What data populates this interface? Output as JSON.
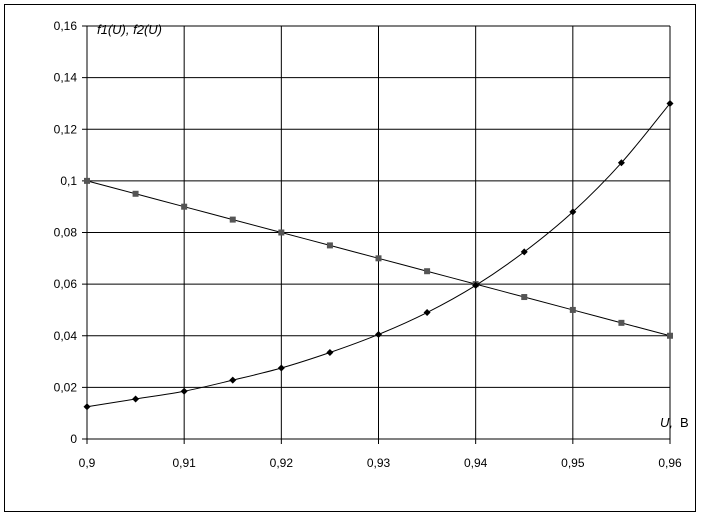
{
  "chart_data": {
    "type": "line",
    "ylabel": "f1(U), f2(U)",
    "xlabel_var": "U",
    "xlabel_unit": "B",
    "xlim": [
      0.9,
      0.96
    ],
    "ylim": [
      0,
      0.16
    ],
    "x_ticks": [
      "0,9",
      "0,91",
      "0,92",
      "0,93",
      "0,94",
      "0,95",
      "0,96"
    ],
    "y_ticks": [
      "0",
      "0,02",
      "0,04",
      "0,06",
      "0,08",
      "0,1",
      "0,12",
      "0,14",
      "0,16"
    ],
    "grid": true,
    "series": [
      {
        "marker": "square",
        "color": "#555555",
        "x": [
          0.9,
          0.905,
          0.91,
          0.915,
          0.92,
          0.925,
          0.93,
          0.935,
          0.94,
          0.945,
          0.95,
          0.955,
          0.96
        ],
        "values": [
          0.1,
          0.095,
          0.09,
          0.085,
          0.08,
          0.075,
          0.07,
          0.065,
          0.06,
          0.055,
          0.05,
          0.045,
          0.04
        ]
      },
      {
        "marker": "diamond",
        "color": "#000000",
        "x": [
          0.9,
          0.905,
          0.91,
          0.915,
          0.92,
          0.925,
          0.93,
          0.935,
          0.94,
          0.945,
          0.95,
          0.955,
          0.96
        ],
        "values": [
          0.0125,
          0.0155,
          0.0185,
          0.0228,
          0.0275,
          0.0335,
          0.0405,
          0.049,
          0.0595,
          0.0725,
          0.088,
          0.107,
          0.13
        ]
      }
    ]
  }
}
